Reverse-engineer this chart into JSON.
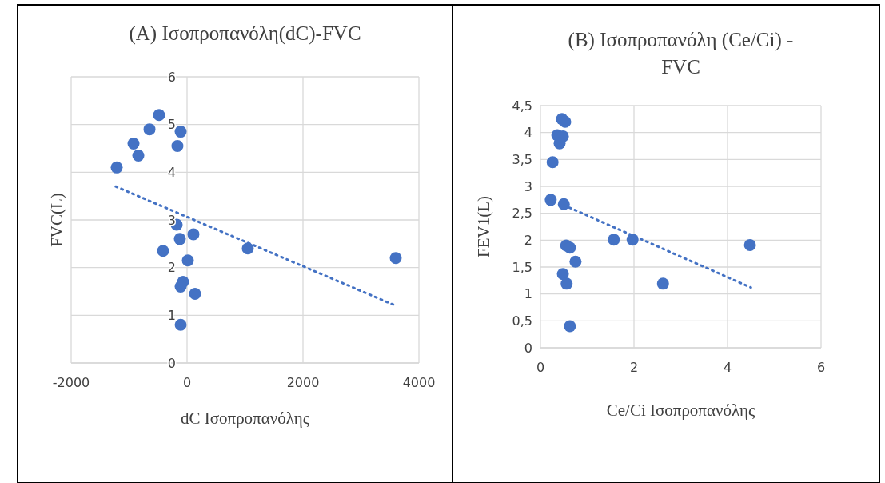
{
  "chart_data": [
    {
      "type": "scatter",
      "title": "(A) Ισοπροπανόλη(dC)-FVC",
      "xlabel": "dC Ισοπροπανόλης",
      "ylabel": "FVC(L)",
      "xlim": [
        -2000,
        4000
      ],
      "xticks": [
        -2000,
        0,
        2000,
        4000
      ],
      "ylim": [
        0,
        6
      ],
      "yticks": [
        0,
        1,
        2,
        3,
        4,
        5,
        6
      ],
      "grid": true,
      "marker": "circle",
      "series": [
        {
          "color": "#4472c4",
          "x": [
            -1214,
            -924,
            -841,
            -648,
            -483,
            -110,
            -166,
            -179,
            -124,
            -414,
            110,
            14,
            -69,
            -110,
            138,
            -110,
            1048,
            3600
          ],
          "values": [
            4.1,
            4.6,
            4.35,
            4.9,
            5.2,
            4.85,
            4.55,
            2.9,
            2.6,
            2.35,
            2.7,
            2.15,
            1.7,
            1.6,
            1.45,
            0.8,
            2.4,
            2.2
          ]
        },
        {
          "type": "line",
          "color": "#4472c4",
          "line_style": "dotted",
          "marker": "none",
          "x": [
            -1230,
            3600
          ],
          "values": [
            3.7,
            1.2
          ]
        }
      ]
    },
    {
      "type": "scatter",
      "title": "(B) Ισοπροπανόλη (Ce/Ci) - FVC",
      "xlabel": "Ce/Ci Ισοπροπανόλης",
      "ylabel": "FEV1(L)",
      "xlim": [
        0,
        6
      ],
      "xticks": [
        0,
        2,
        4,
        6
      ],
      "ylim": [
        0,
        4.5
      ],
      "yticks": [
        {
          "value": 0,
          "label": "0"
        },
        {
          "value": 0.5,
          "label": "0,5"
        },
        {
          "value": 1,
          "label": "1"
        },
        {
          "value": 1.5,
          "label": "1,5"
        },
        {
          "value": 2,
          "label": "2"
        },
        {
          "value": 2.5,
          "label": "2,5"
        },
        {
          "value": 3,
          "label": "3"
        },
        {
          "value": 3.5,
          "label": "3,5"
        },
        {
          "value": 4,
          "label": "4"
        },
        {
          "value": 4.5,
          "label": "4,5"
        }
      ],
      "grid": true,
      "marker": "circle",
      "series": [
        {
          "color": "#4472c4",
          "x": [
            0.46,
            0.53,
            0.36,
            0.48,
            0.41,
            0.26,
            0.22,
            0.5,
            0.55,
            0.63,
            0.75,
            0.48,
            0.56,
            0.63,
            1.57,
            1.97,
            2.62,
            4.48
          ],
          "values": [
            4.25,
            4.2,
            3.95,
            3.93,
            3.8,
            3.45,
            2.75,
            2.67,
            1.9,
            1.86,
            1.6,
            1.37,
            1.19,
            0.4,
            2.01,
            2.01,
            1.19,
            1.91
          ]
        },
        {
          "type": "line",
          "color": "#4472c4",
          "line_style": "dotted",
          "marker": "none",
          "x": [
            0.5,
            4.5
          ],
          "values": [
            2.65,
            1.12
          ]
        }
      ]
    }
  ]
}
